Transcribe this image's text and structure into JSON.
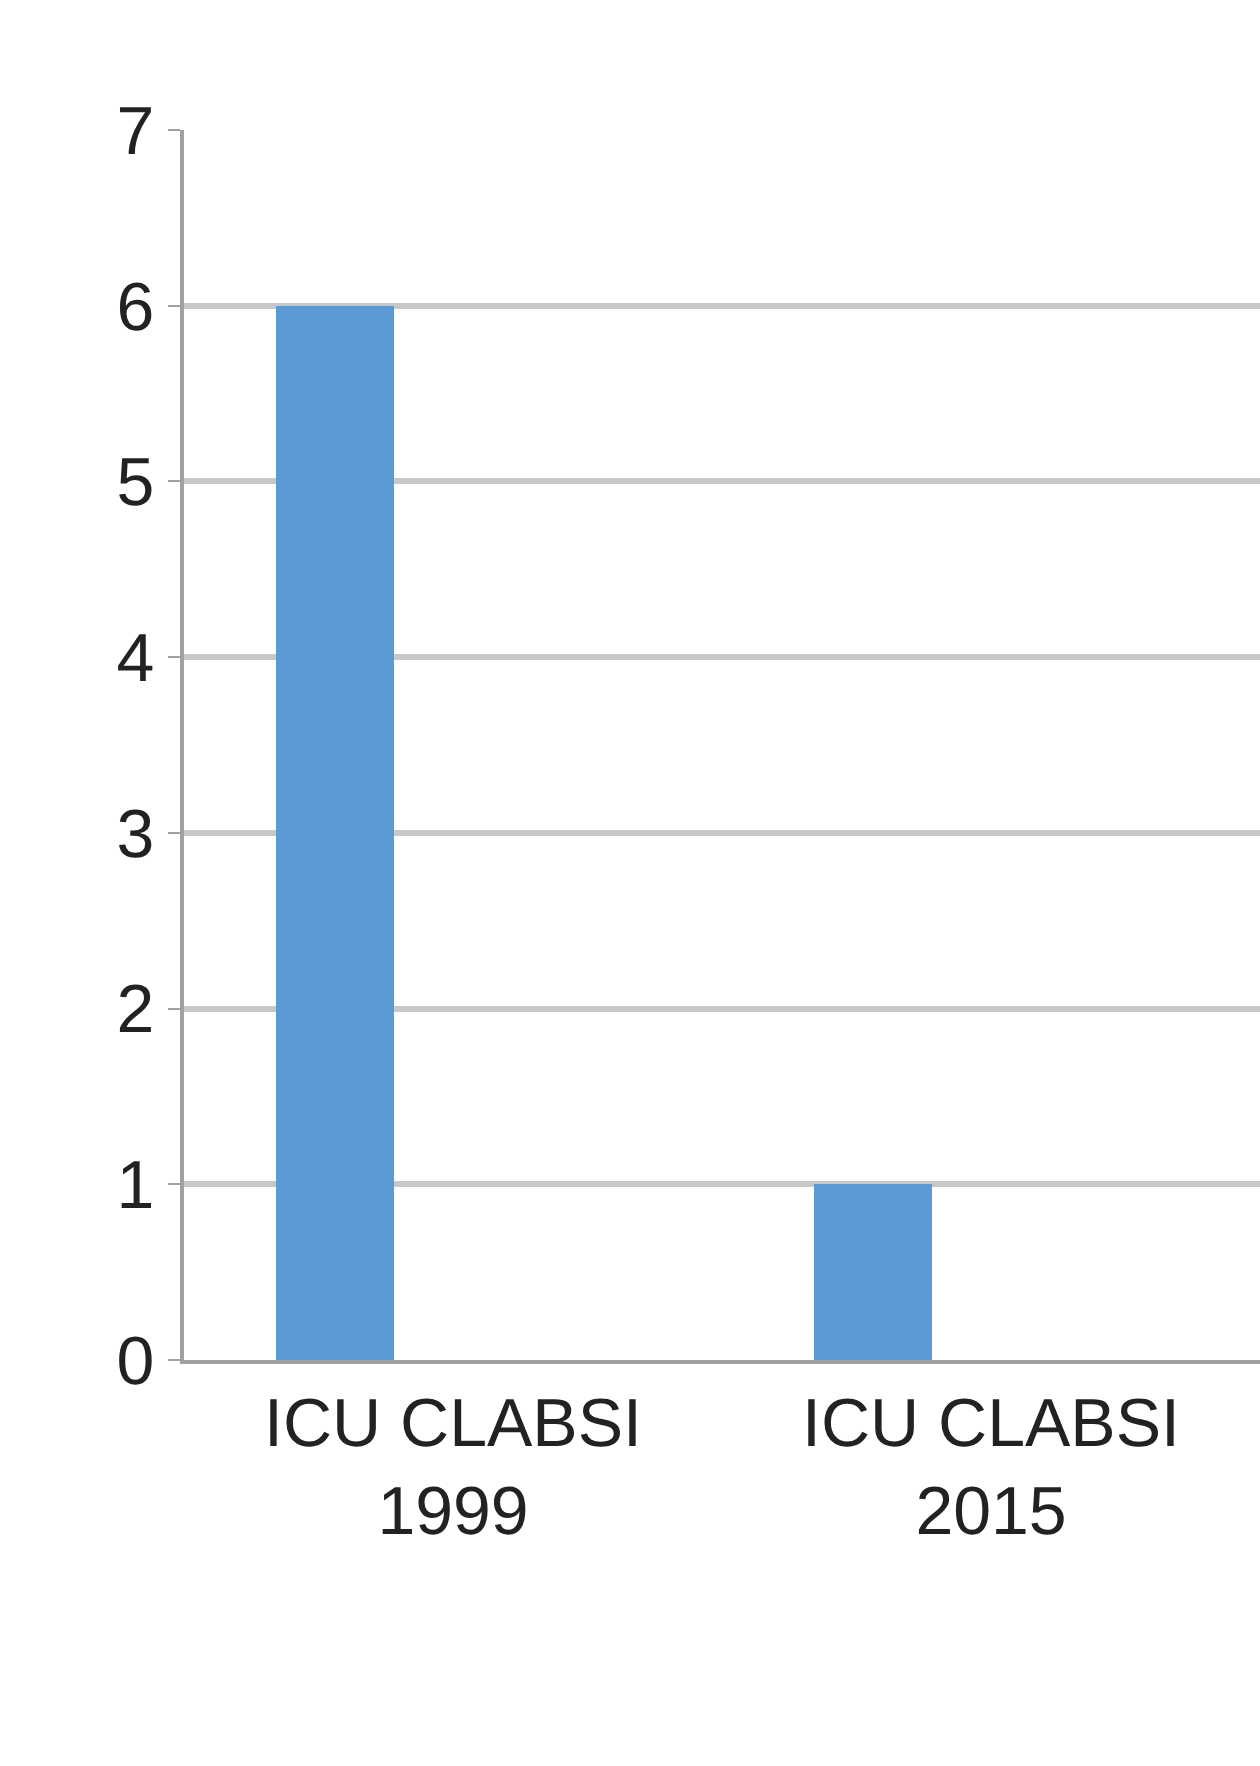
{
  "chart_data": {
    "type": "bar",
    "categories": [
      "ICU CLABSI 1999",
      "ICU CLABSI 2015"
    ],
    "values": [
      6,
      1
    ],
    "color": "#5b9bd5",
    "ylim": [
      0,
      7
    ],
    "yticks": [
      0,
      1,
      2,
      3,
      4,
      5,
      6,
      7
    ],
    "grid": "y"
  }
}
